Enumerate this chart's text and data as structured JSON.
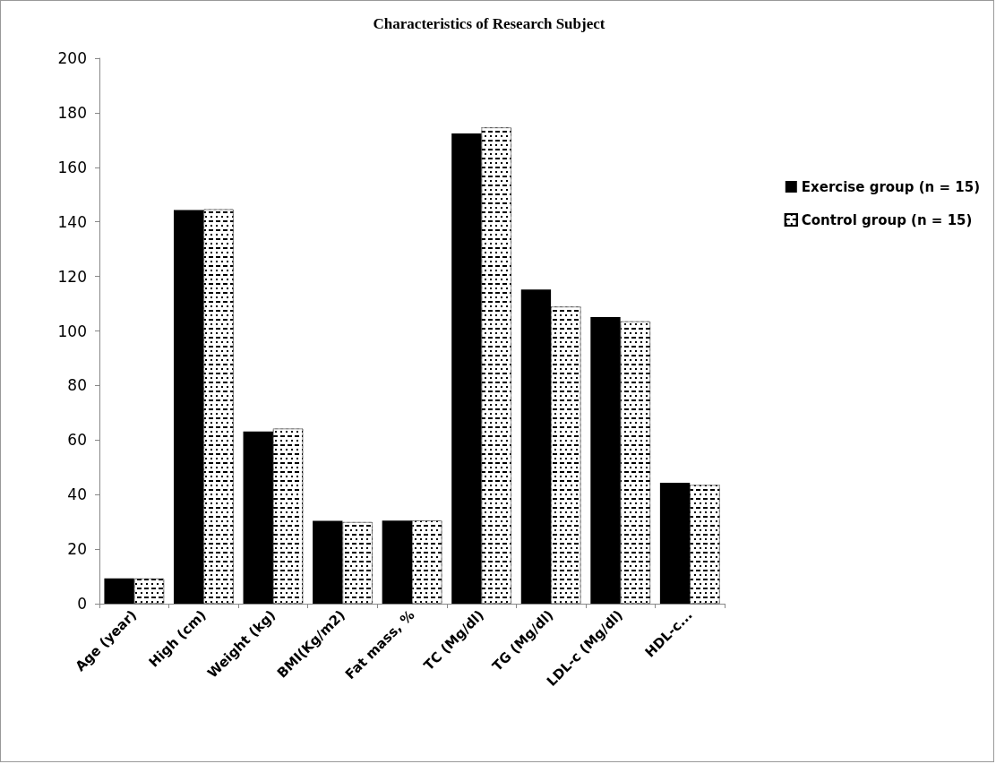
{
  "chart_data": {
    "type": "bar",
    "title": "Characteristics of Research Subject",
    "categories": [
      "Age (year)",
      "High (cm)",
      "Weight (kg)",
      "BMI(Kg/m2)",
      "Fat mass, %",
      "TC (Mg/dl)",
      "TG (Mg/dl)",
      "LDL-c (Mg/dl)",
      "HDL-c..."
    ],
    "series": [
      {
        "name": "Exercise group (n = 15)",
        "color": "#000000",
        "values": [
          9.3,
          144.3,
          63.1,
          30.4,
          30.5,
          172.4,
          115.2,
          105.1,
          44.3
        ]
      },
      {
        "name": "Control group (n = 15)",
        "color": "#ffffff",
        "values": [
          9.2,
          144.6,
          64.2,
          29.9,
          30.5,
          174.6,
          108.9,
          103.5,
          43.5
        ]
      }
    ],
    "ylim": [
      0,
      200
    ],
    "yticks": [
      0,
      20,
      40,
      60,
      80,
      100,
      120,
      140,
      160,
      180,
      200
    ],
    "grid": false,
    "legend": "right"
  }
}
